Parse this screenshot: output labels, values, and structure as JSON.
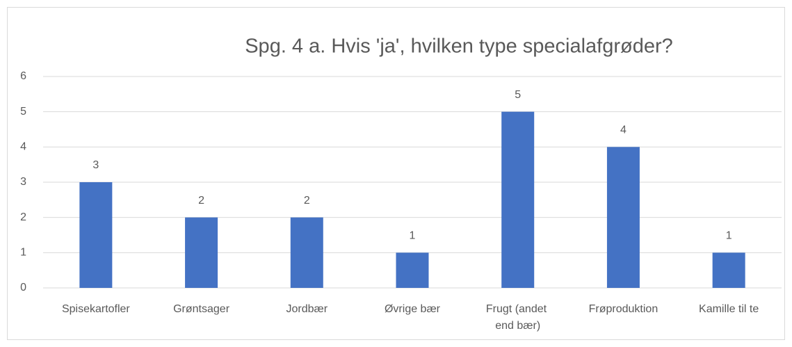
{
  "chart_data": {
    "type": "bar",
    "title": "Spg. 4 a. Hvis 'ja', hvilken type specialafgrøder?",
    "categories": [
      "Spisekartofler",
      "Grøntsager",
      "Jordbær",
      "Øvrige bær",
      "Frugt (andet end bær)",
      "Frøproduktion",
      "Kamille til te"
    ],
    "values": [
      3,
      2,
      2,
      1,
      5,
      4,
      1
    ],
    "color": "#4472c4",
    "ylim": [
      0,
      6
    ],
    "yticks": [
      0,
      1,
      2,
      3,
      4,
      5,
      6
    ],
    "grid": true
  }
}
